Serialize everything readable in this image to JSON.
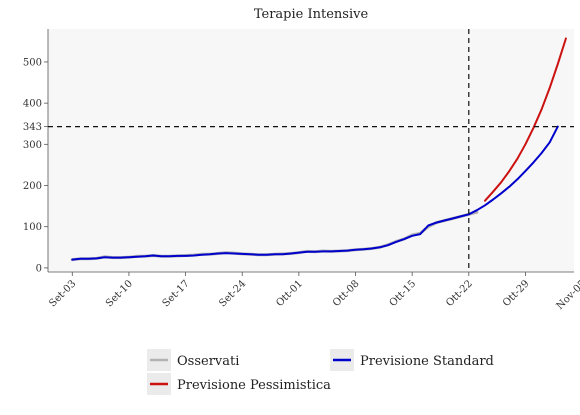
{
  "chart_data": {
    "type": "line",
    "title": "Terapie Intensive",
    "xlabel": "",
    "ylabel": "",
    "x_tick_labels": [
      "Set-03",
      "Set-10",
      "Set-17",
      "Set-24",
      "Ott-01",
      "Ott-08",
      "Ott-15",
      "Ott-22",
      "Ott-29",
      "Nov-05"
    ],
    "y_ticks": [
      0,
      100,
      200,
      300,
      343,
      400,
      500
    ],
    "xlim_days": [
      -3,
      62
    ],
    "ylim": [
      -10,
      580
    ],
    "grid": false,
    "background": "#f7f7f7",
    "reference_lines": [
      {
        "orientation": "horizontal",
        "value": 343,
        "style": "dashed",
        "color": "#111111"
      },
      {
        "orientation": "vertical",
        "value": "Ott-22",
        "day": 49,
        "style": "dashed",
        "color": "#111111"
      }
    ],
    "legend": {
      "position": "bottom",
      "columns": 2
    },
    "series": [
      {
        "name": "Osservati",
        "color": "#b3b3b3",
        "width": 3,
        "x": [
          0,
          1,
          2,
          3,
          4,
          5,
          6,
          7,
          8,
          9,
          10,
          11,
          12,
          13,
          14,
          15,
          16,
          17,
          18,
          19,
          20,
          21,
          22,
          23,
          24,
          25,
          26,
          27,
          28,
          29,
          30,
          31,
          32,
          33,
          34,
          35,
          36,
          37,
          38,
          39,
          40,
          41,
          42,
          43,
          44,
          45,
          46,
          47,
          48,
          49,
          50
        ],
        "values": [
          20,
          22,
          22,
          23,
          27,
          25,
          25,
          26,
          28,
          28,
          30,
          28,
          28,
          29,
          30,
          31,
          33,
          33,
          35,
          37,
          36,
          34,
          33,
          32,
          32,
          33,
          34,
          35,
          37,
          40,
          39,
          41,
          40,
          41,
          42,
          44,
          45,
          47,
          50,
          56,
          64,
          70,
          80,
          84,
          100,
          110,
          115,
          120,
          125,
          130,
          135
        ]
      },
      {
        "name": "Previsione Standard",
        "color": "#0000cc",
        "width": 2,
        "x": [
          0,
          1,
          2,
          3,
          4,
          5,
          6,
          7,
          8,
          9,
          10,
          11,
          12,
          13,
          14,
          15,
          16,
          17,
          18,
          19,
          20,
          21,
          22,
          23,
          24,
          25,
          26,
          27,
          28,
          29,
          30,
          31,
          32,
          33,
          34,
          35,
          36,
          37,
          38,
          39,
          40,
          41,
          42,
          43,
          44,
          45,
          46,
          47,
          48,
          49,
          50,
          51,
          52,
          53,
          54,
          55,
          56,
          57,
          58,
          59,
          60
        ],
        "values": [
          20,
          22,
          22,
          23,
          26,
          25,
          25,
          26,
          27,
          28,
          30,
          28,
          28,
          29,
          29,
          30,
          32,
          33,
          35,
          36,
          35,
          34,
          33,
          32,
          32,
          33,
          33,
          35,
          37,
          39,
          39,
          40,
          40,
          41,
          42,
          44,
          45,
          47,
          50,
          55,
          63,
          70,
          78,
          82,
          103,
          110,
          115,
          120,
          125,
          130,
          140,
          152,
          166,
          181,
          197,
          215,
          235,
          256,
          279,
          305,
          343
        ]
      },
      {
        "name": "Previsione Pessimistica",
        "color": "#cc1111",
        "width": 2,
        "x": [
          51,
          52,
          53,
          54,
          55,
          56,
          57,
          58,
          59,
          60,
          61
        ],
        "values": [
          163,
          185,
          208,
          235,
          265,
          300,
          340,
          385,
          437,
          495,
          557
        ]
      }
    ]
  }
}
